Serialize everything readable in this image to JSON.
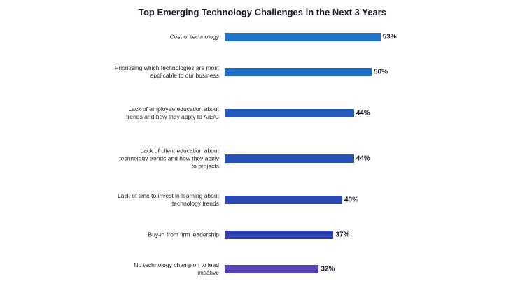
{
  "chart_data": {
    "type": "bar",
    "orientation": "horizontal",
    "title": "Top Emerging Technology Challenges in the Next 3 Years",
    "categories": [
      "Cost of technology",
      "Prioritising which technologies are most applicable to our business",
      "Lack of employee education about trends and how they apply to A/E/C",
      "Lack of client education about technology trends and how they apply to projects",
      "Lack of time to invest in learning about technology trends",
      "Buy-in from firm leadership",
      "No technology champion to lead initiative"
    ],
    "values": [
      53,
      50,
      44,
      44,
      40,
      37,
      32
    ],
    "value_labels": [
      "53%",
      "50%",
      "44%",
      "44%",
      "40%",
      "37%",
      "32%"
    ],
    "colors": [
      "#1e74c6",
      "#1f6cc3",
      "#2459bd",
      "#2553bb",
      "#2c48b5",
      "#3241b0",
      "#5a45b5"
    ]
  }
}
